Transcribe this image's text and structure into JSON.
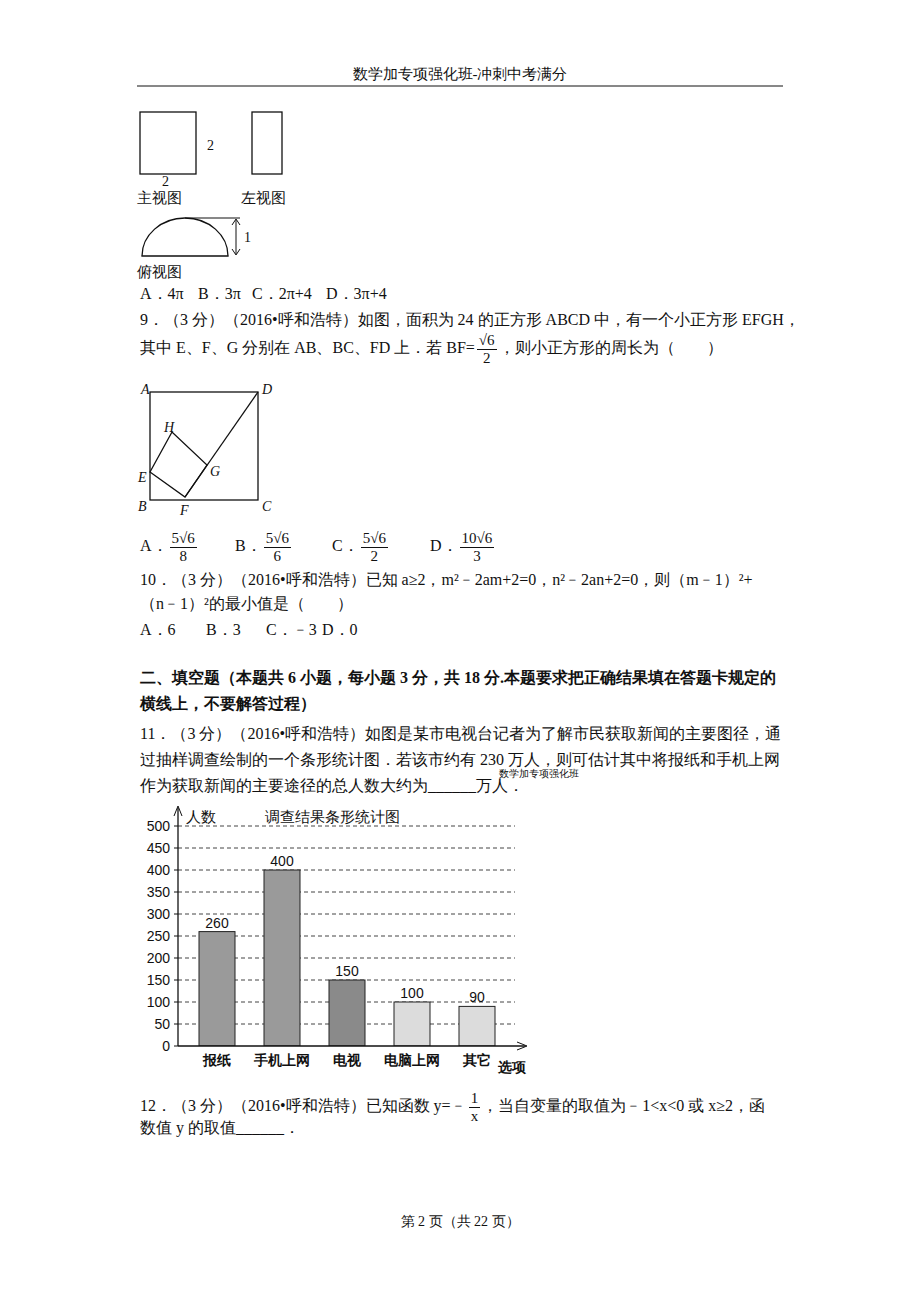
{
  "header": "数学加专项强化班-冲刺中考满分",
  "q8_figure": {
    "front_label": "主视图",
    "left_label": "左视图",
    "top_label": "俯视图",
    "front_width": "2",
    "front_height": "2",
    "top_depth": "1"
  },
  "q8_options": [
    "A．4π",
    "B．3π",
    "C．2π+4",
    "D．3π+4"
  ],
  "q9": {
    "lines": [
      [
        "9．（3 分）（2016•呼和浩特）如图，面积为 24 的正方形 ABCD 中，有一个小正方形 EFGH，"
      ],
      [
        "其中 E、F、G 分别在 AB、BC、FD 上．若 BF=",
        {
          "num": "√6",
          "den": "2"
        },
        "，则小正方形的周长为（　　）"
      ]
    ],
    "points": [
      "A",
      "D",
      "H",
      "E",
      "G",
      "B",
      "F",
      "C"
    ],
    "options": [
      {
        "letter": "A．",
        "num": "5√6",
        "den": "8"
      },
      {
        "letter": "B．",
        "num": "5√6",
        "den": "6"
      },
      {
        "letter": "C．",
        "num": "5√6",
        "den": "2"
      },
      {
        "letter": "D．",
        "num": "10√6",
        "den": "3"
      }
    ]
  },
  "q10": {
    "lines": [
      [
        "10．（3 分）（2016•呼和浩特）已知 a≥2，m²﹣2am+2=0，n²﹣2an+2=0，则（m﹣1）²+"
      ],
      [
        "（n﹣1）²的最小值是（　　）"
      ]
    ],
    "options": [
      "A．6",
      "B．3",
      "C．﹣3",
      "D．0"
    ]
  },
  "section": [
    "二、填空题（本题共 6 小题，每小题 3 分，共 18 分.本题要求把正确结果填在答题卡规定的",
    "横线上，不要解答过程）"
  ],
  "q11": {
    "lines": [
      [
        "11．（3 分）（2016•呼和浩特）如图是某市电视台记者为了解市民获取新闻的主要图径，通"
      ],
      [
        "过抽样调查绘制的一个条形统计图．若该市约有 230 万人，则可估计其中将报纸和手机上网"
      ],
      [
        "作为获取新闻的主要途径的总人数大约为______万人．"
      ]
    ],
    "watermark": "数学加专项强化班"
  },
  "chart_data": {
    "type": "bar",
    "title": "调查结果条形统计图",
    "y_label": "人数",
    "x_label": "选项",
    "categories": [
      "报纸",
      "手机上网",
      "电视",
      "电脑上网",
      "其它"
    ],
    "values": [
      260,
      400,
      150,
      100,
      90
    ],
    "colors": [
      "#9a9a9a",
      "#9a9a9a",
      "#8a8a8a",
      "#dcdcdc",
      "#dcdcdc"
    ],
    "ylim": [
      0,
      500
    ],
    "yticks": [
      0,
      50,
      100,
      150,
      200,
      250,
      300,
      350,
      400,
      450,
      500
    ],
    "grid": true,
    "data_labels": true
  },
  "q12": {
    "lines": [
      [
        "12．（3 分）（2016•呼和浩特）已知函数 y=﹣",
        {
          "num": "1",
          "den": "x"
        },
        "，当自变量的取值为﹣1<x<0 或 x≥2，函"
      ],
      [
        "数值 y 的取值______．"
      ]
    ]
  },
  "footer": "第 2 页（共 22 页）"
}
